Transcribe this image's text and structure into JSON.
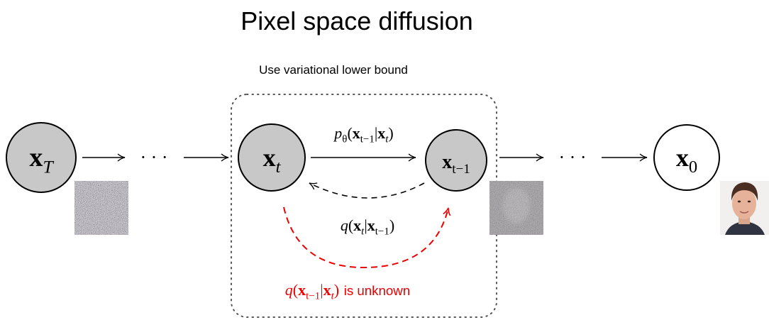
{
  "title": "Pixel space diffusion",
  "box_label": "Use variational lower bound",
  "nodes": [
    {
      "parts": [
        {
          "bold": "x",
          "sub": "T"
        }
      ]
    },
    {
      "parts": [
        {
          "bold": "x",
          "sub": "t"
        }
      ]
    },
    {
      "parts": [
        {
          "bold": "x",
          "sub": "t−1"
        }
      ]
    },
    {
      "parts": [
        {
          "bold": "x",
          "sub": "0"
        }
      ]
    }
  ],
  "ellipses": [
    "· · ·",
    "· · ·"
  ],
  "edges": [
    {
      "parts": [
        {
          "text": "p",
          "sub": "θ"
        },
        {
          "text": "("
        },
        {
          "bold": "x",
          "sub": "t−1"
        },
        {
          "text": "|"
        },
        {
          "bold": "x",
          "sub": "t"
        },
        {
          "text": ")"
        }
      ]
    },
    {
      "parts": [
        {
          "text": "q"
        },
        {
          "text": "("
        },
        {
          "bold": "x",
          "sub": "t"
        },
        {
          "text": "|"
        },
        {
          "bold": "x",
          "sub": "t−1"
        },
        {
          "text": ")"
        }
      ]
    },
    {
      "parts": [
        {
          "text": "q"
        },
        {
          "text": "("
        },
        {
          "bold": "x",
          "sub": "t−1"
        },
        {
          "text": "|"
        },
        {
          "bold": "x",
          "sub": "t"
        },
        {
          "text": ")"
        }
      ],
      "suffix": "is unknown"
    }
  ]
}
